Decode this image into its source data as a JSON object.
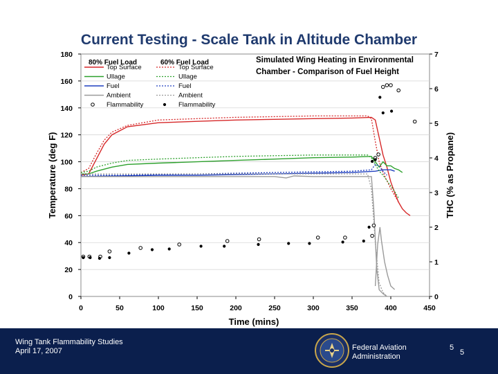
{
  "slide": {
    "title": "Current Testing - Scale Tank in Altitude Chamber",
    "footer": {
      "line1": "Wing Tank Flammability Studies",
      "line2": "April 17, 2007",
      "agency_line1": "Federal Aviation",
      "agency_line2": "Administration",
      "page_a": "5",
      "page_b": "5"
    }
  },
  "colors": {
    "top_surface": "#d62728",
    "ullage": "#2ca02c",
    "fuel": "#1f3fbf",
    "ambient": "#9a9a9a",
    "flammability": "#000000",
    "navy": "#0b1f4d",
    "title": "#1f3a6e"
  },
  "chart_data": {
    "type": "line",
    "title": "Simulated Wing Heating in Environmental Chamber - Comparison of Fuel Height",
    "xlabel": "Time (mins)",
    "ylabel": "Temperature (deg F)",
    "y2label": "THC (% as Propane)",
    "xlim": [
      0,
      450
    ],
    "ylim": [
      0,
      180
    ],
    "y2lim": [
      0,
      7
    ],
    "xticks": [
      0,
      50,
      100,
      150,
      200,
      250,
      300,
      350,
      400,
      450
    ],
    "yticks": [
      0,
      20,
      40,
      60,
      80,
      100,
      120,
      140,
      160,
      180
    ],
    "y2ticks": [
      0,
      1,
      2,
      3,
      4,
      5,
      6,
      7
    ],
    "legend": {
      "placement": "top-left",
      "group_a": "80% Fuel Load",
      "group_b": "60% Fuel Load"
    },
    "series": [
      {
        "name": "Top Surface",
        "group": "80% Fuel Load",
        "axis": "left",
        "style": "solid",
        "color": "top_surface",
        "points": [
          [
            0,
            90
          ],
          [
            10,
            91
          ],
          [
            20,
            102
          ],
          [
            30,
            113
          ],
          [
            40,
            120
          ],
          [
            60,
            126
          ],
          [
            100,
            129
          ],
          [
            150,
            130
          ],
          [
            200,
            131
          ],
          [
            250,
            131.5
          ],
          [
            300,
            132
          ],
          [
            350,
            132.5
          ],
          [
            375,
            133
          ],
          [
            380,
            131
          ],
          [
            385,
            118
          ],
          [
            390,
            105
          ],
          [
            395,
            96
          ],
          [
            400,
            85
          ],
          [
            405,
            77
          ],
          [
            410,
            70
          ],
          [
            415,
            65
          ],
          [
            420,
            62
          ],
          [
            425,
            60
          ]
        ]
      },
      {
        "name": "Ullage",
        "group": "80% Fuel Load",
        "axis": "left",
        "style": "solid",
        "color": "ullage",
        "points": [
          [
            0,
            91
          ],
          [
            10,
            91
          ],
          [
            20,
            93
          ],
          [
            40,
            96
          ],
          [
            60,
            98
          ],
          [
            100,
            99
          ],
          [
            150,
            100
          ],
          [
            200,
            101
          ],
          [
            250,
            102
          ],
          [
            300,
            103
          ],
          [
            350,
            103.5
          ],
          [
            375,
            104
          ],
          [
            380,
            100
          ],
          [
            385,
            96
          ],
          [
            390,
            100
          ],
          [
            395,
            97
          ],
          [
            400,
            97
          ],
          [
            405,
            95
          ],
          [
            410,
            94
          ],
          [
            415,
            92
          ]
        ]
      },
      {
        "name": "Fuel",
        "group": "80% Fuel Load",
        "axis": "left",
        "style": "solid",
        "color": "fuel",
        "points": [
          [
            0,
            89
          ],
          [
            50,
            89.5
          ],
          [
            100,
            90
          ],
          [
            150,
            90
          ],
          [
            200,
            90.5
          ],
          [
            250,
            91
          ],
          [
            300,
            91.5
          ],
          [
            350,
            92
          ],
          [
            380,
            93
          ],
          [
            390,
            94
          ],
          [
            400,
            94
          ],
          [
            405,
            93
          ]
        ]
      },
      {
        "name": "Ambient",
        "group": "80% Fuel Load",
        "axis": "left",
        "style": "solid",
        "color": "ambient",
        "points": [
          [
            0,
            89
          ],
          [
            100,
            89
          ],
          [
            200,
            89
          ],
          [
            250,
            89
          ],
          [
            265,
            88
          ],
          [
            275,
            89.5
          ],
          [
            300,
            89
          ],
          [
            340,
            89
          ],
          [
            350,
            89
          ],
          [
            360,
            89
          ],
          [
            375,
            89
          ],
          [
            378,
            65
          ],
          [
            382,
            20
          ],
          [
            385,
            5
          ],
          [
            390,
            2
          ],
          [
            395,
            0
          ]
        ]
      },
      {
        "name": "Top Surface",
        "group": "60% Fuel Load",
        "axis": "left",
        "style": "dotted",
        "color": "top_surface",
        "points": [
          [
            0,
            92
          ],
          [
            10,
            95
          ],
          [
            20,
            106
          ],
          [
            30,
            116
          ],
          [
            40,
            122
          ],
          [
            60,
            127
          ],
          [
            100,
            131
          ],
          [
            150,
            132
          ],
          [
            200,
            133
          ],
          [
            250,
            133.5
          ],
          [
            300,
            134
          ],
          [
            350,
            134
          ],
          [
            370,
            134
          ],
          [
            375,
            132
          ],
          [
            380,
            115
          ],
          [
            385,
            100
          ],
          [
            390,
            92
          ],
          [
            395,
            86
          ],
          [
            400,
            80
          ],
          [
            405,
            75
          ],
          [
            410,
            70
          ]
        ]
      },
      {
        "name": "Ullage",
        "group": "60% Fuel Load",
        "axis": "left",
        "style": "dotted",
        "color": "ullage",
        "points": [
          [
            0,
            92
          ],
          [
            10,
            93
          ],
          [
            20,
            96
          ],
          [
            40,
            99
          ],
          [
            60,
            101
          ],
          [
            100,
            102
          ],
          [
            150,
            103
          ],
          [
            200,
            104
          ],
          [
            250,
            104.5
          ],
          [
            300,
            105
          ],
          [
            350,
            105
          ],
          [
            370,
            105
          ],
          [
            375,
            103
          ],
          [
            380,
            98
          ],
          [
            385,
            93
          ],
          [
            390,
            90
          ],
          [
            395,
            86
          ],
          [
            400,
            82
          ],
          [
            405,
            78
          ],
          [
            410,
            73
          ]
        ]
      },
      {
        "name": "Fuel",
        "group": "60% Fuel Load",
        "axis": "left",
        "style": "dotted",
        "color": "fuel",
        "points": [
          [
            0,
            90
          ],
          [
            50,
            90
          ],
          [
            100,
            90.5
          ],
          [
            150,
            91
          ],
          [
            200,
            91.5
          ],
          [
            250,
            92
          ],
          [
            300,
            92.5
          ],
          [
            350,
            93
          ],
          [
            375,
            94
          ],
          [
            380,
            98
          ],
          [
            385,
            97
          ],
          [
            390,
            93
          ],
          [
            395,
            90
          ]
        ]
      },
      {
        "name": "Ambient",
        "group": "60% Fuel Load",
        "axis": "left",
        "style": "dotted",
        "color": "ambient",
        "points": [
          [
            0,
            91
          ],
          [
            100,
            91
          ],
          [
            200,
            91
          ],
          [
            300,
            91
          ],
          [
            350,
            91
          ],
          [
            370,
            91
          ],
          [
            375,
            80
          ],
          [
            380,
            40
          ],
          [
            385,
            10
          ],
          [
            390,
            3
          ],
          [
            395,
            0
          ]
        ]
      },
      {
        "name": "Ambient (THC trace)",
        "group": "80% Fuel Load",
        "axis": "right",
        "style": "solid",
        "color": "ambient",
        "points": [
          [
            380,
            0.3
          ],
          [
            383,
            1.5
          ],
          [
            386,
            2.0
          ],
          [
            388,
            1.6
          ],
          [
            392,
            1.0
          ],
          [
            396,
            0.6
          ],
          [
            400,
            0.3
          ],
          [
            405,
            0.2
          ]
        ]
      }
    ],
    "scatter": [
      {
        "name": "Flammability",
        "group": "80% Fuel Load",
        "axis": "right",
        "marker": "open-circle",
        "color": "flammability",
        "points": [
          [
            3,
            1.15
          ],
          [
            11,
            1.15
          ],
          [
            25,
            1.15
          ],
          [
            37,
            1.3
          ],
          [
            77,
            1.4
          ],
          [
            127,
            1.5
          ],
          [
            189,
            1.6
          ],
          [
            230,
            1.65
          ],
          [
            306,
            1.7
          ],
          [
            341,
            1.7
          ],
          [
            376,
            1.75
          ],
          [
            378,
            2.05
          ],
          [
            380,
            4.0
          ],
          [
            384,
            4.1
          ],
          [
            390,
            6.05
          ],
          [
            395,
            6.1
          ],
          [
            400,
            6.1
          ],
          [
            410,
            5.95
          ],
          [
            431,
            5.05
          ]
        ]
      },
      {
        "name": "Flammability",
        "group": "60% Fuel Load",
        "axis": "right",
        "marker": "filled-dot",
        "color": "flammability",
        "points": [
          [
            3,
            1.12
          ],
          [
            12,
            1.12
          ],
          [
            24,
            1.1
          ],
          [
            37,
            1.12
          ],
          [
            62,
            1.25
          ],
          [
            92,
            1.35
          ],
          [
            114,
            1.37
          ],
          [
            155,
            1.45
          ],
          [
            185,
            1.45
          ],
          [
            229,
            1.5
          ],
          [
            268,
            1.53
          ],
          [
            295,
            1.53
          ],
          [
            338,
            1.57
          ],
          [
            365,
            1.6
          ],
          [
            372,
            2.0
          ],
          [
            376,
            3.9
          ],
          [
            380,
            3.95
          ],
          [
            386,
            5.75
          ],
          [
            390,
            5.3
          ],
          [
            401,
            5.35
          ]
        ]
      }
    ]
  }
}
